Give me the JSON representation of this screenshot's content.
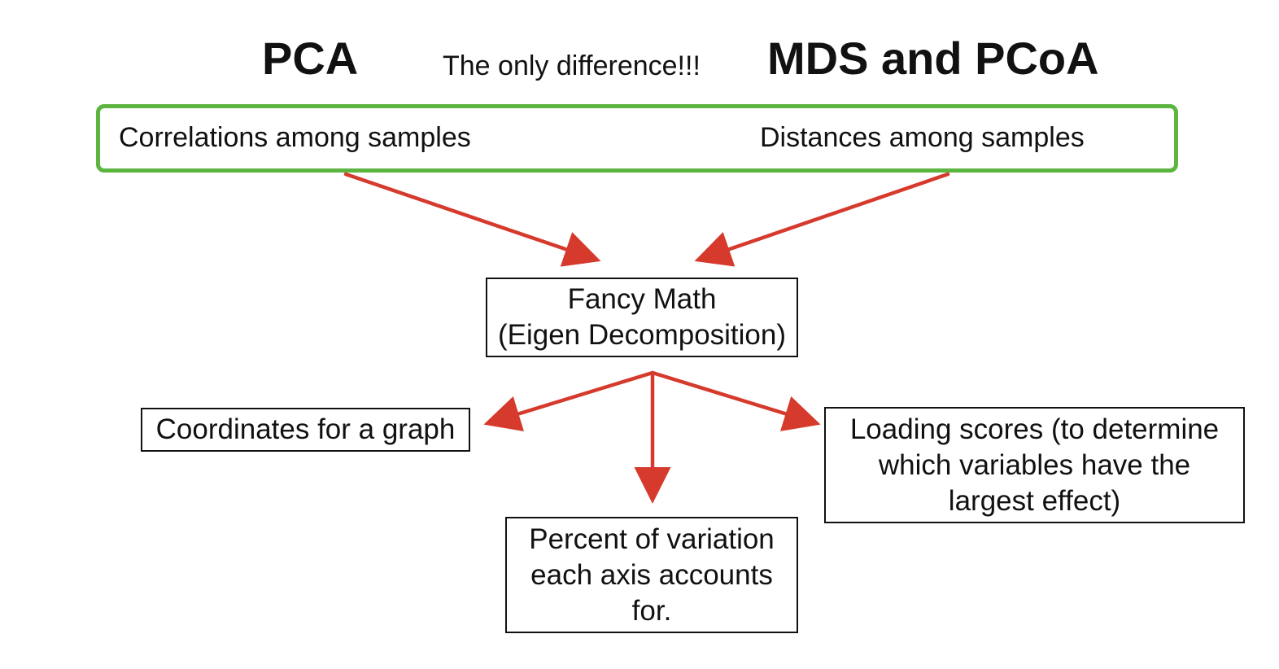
{
  "left_method": "PCA",
  "right_method": "MDS and PCoA",
  "difference_note": "The only difference!!!",
  "highlight": {
    "left_input": "Correlations among samples",
    "right_input": "Distances among samples"
  },
  "process": {
    "line1": "Fancy Math",
    "line2": "(Eigen Decomposition)"
  },
  "outputs": {
    "coordinates": "Coordinates for a graph",
    "percent_variation": [
      "Percent of variation",
      "each axis accounts",
      "for."
    ],
    "loading_scores": [
      "Loading scores (to determine",
      "which variables have the",
      "largest effect)"
    ]
  },
  "colors": {
    "highlight_border": "#5bb53f",
    "arrow": "#d63a2c",
    "box_border": "#111111",
    "text": "#111111"
  }
}
